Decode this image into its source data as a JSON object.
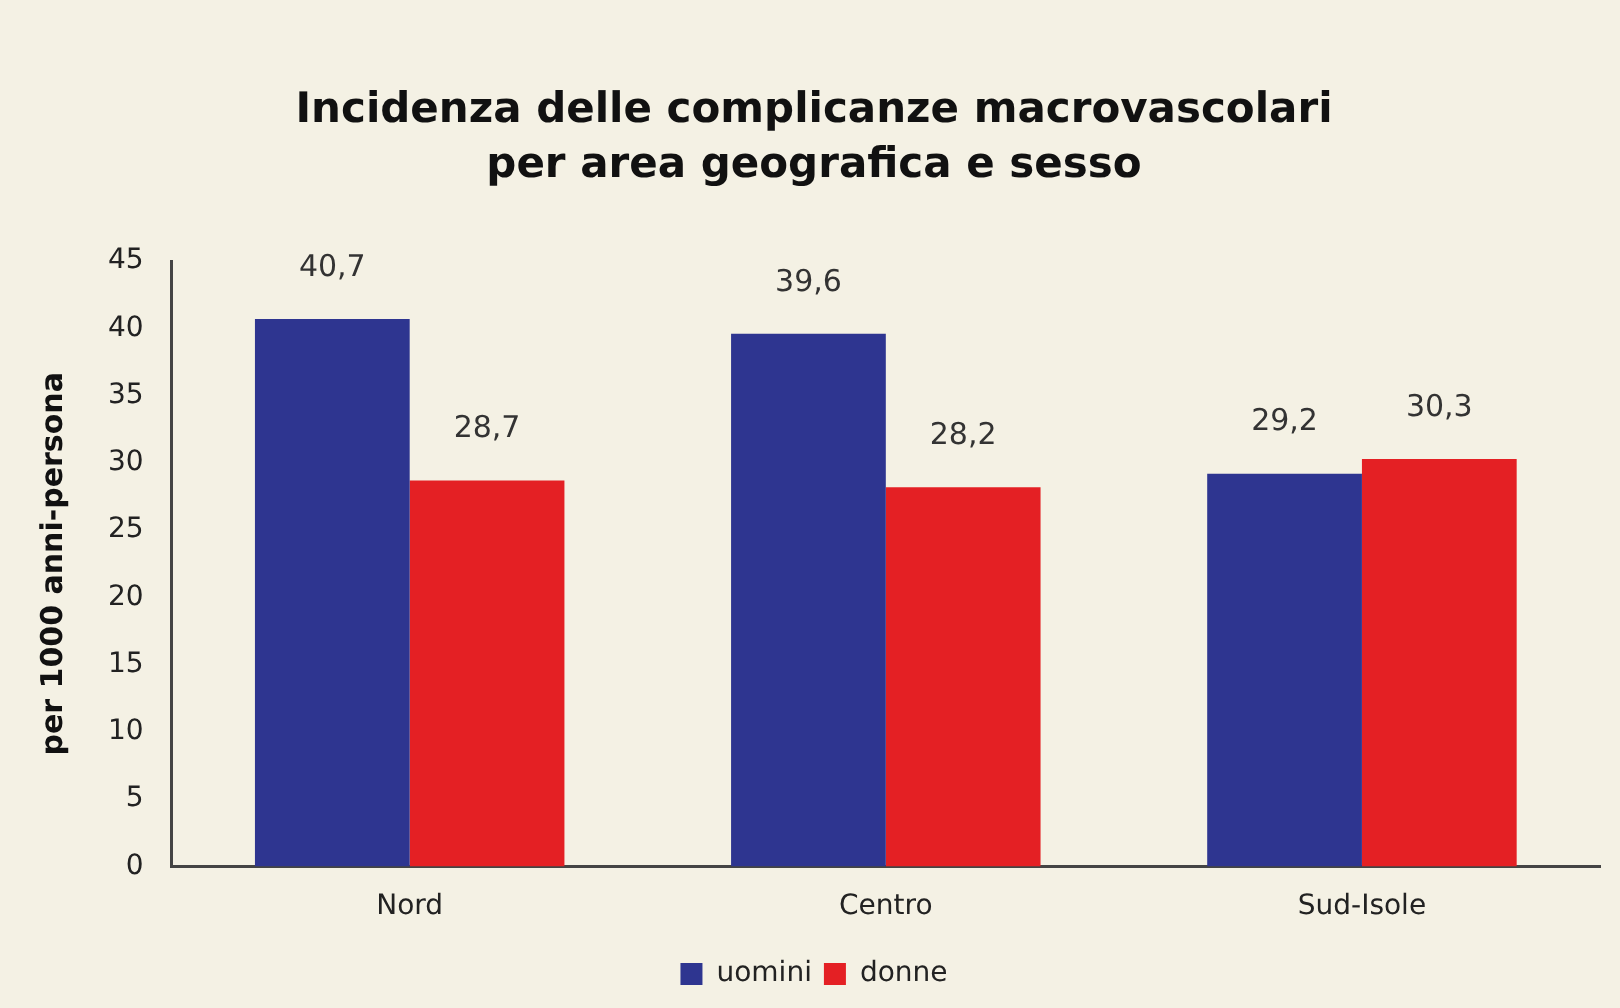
{
  "chart_data": {
    "type": "bar",
    "title": "Incidenza delle complicanze macrovascolari\nper area geografica e sesso",
    "ylabel": "per 1000 anni-persona",
    "categories": [
      "Nord",
      "Centro",
      "Sud-Isole"
    ],
    "series": [
      {
        "name": "uomini",
        "color": "#2e3590",
        "values": [
          40.7,
          39.6,
          29.2
        ],
        "value_labels": [
          "40,7",
          "39,6",
          "29,2"
        ]
      },
      {
        "name": "donne",
        "color": "#e42024",
        "values": [
          28.7,
          28.2,
          30.3
        ],
        "value_labels": [
          "28,7",
          "28,2",
          "30,3"
        ]
      }
    ],
    "ylim": [
      0,
      45
    ],
    "yticks": [
      0,
      5,
      10,
      15,
      20,
      25,
      30,
      35,
      40,
      45
    ],
    "grid": false,
    "legend": "bottom"
  }
}
